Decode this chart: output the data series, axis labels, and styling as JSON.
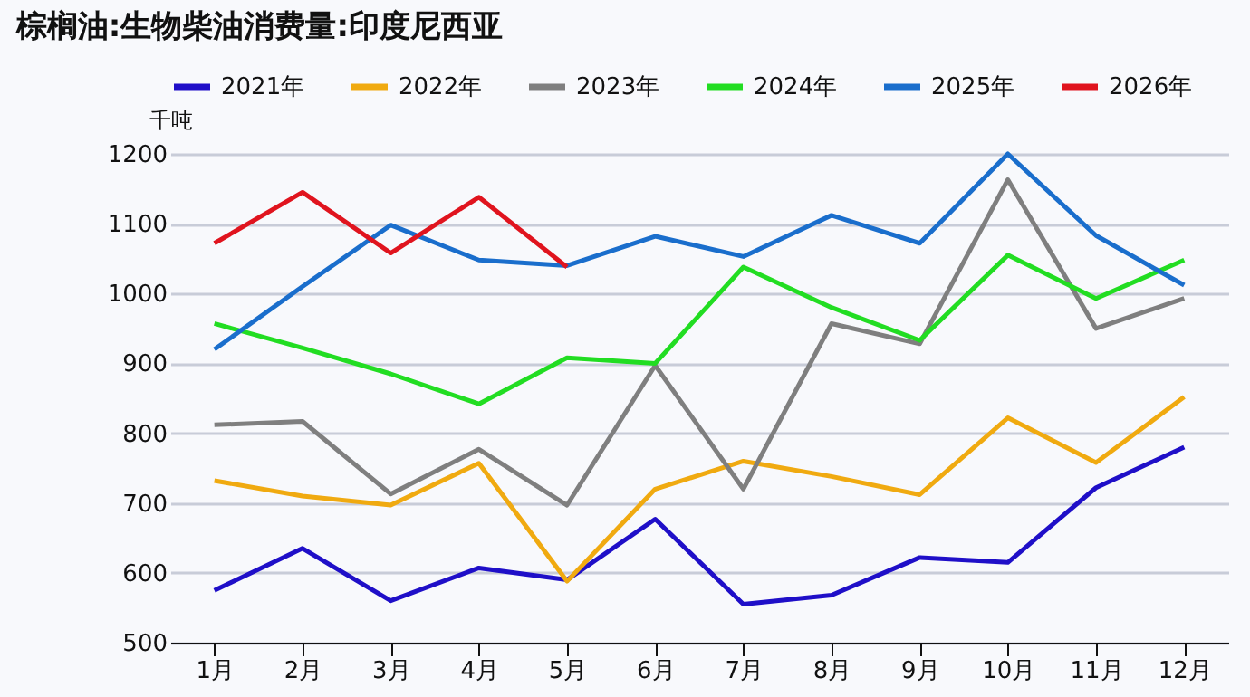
{
  "chart_data": {
    "type": "line",
    "title": "棕榈油:生物柴油消费量:印度尼西亚",
    "ylabel": "千吨",
    "categories": [
      "1月",
      "2月",
      "3月",
      "4月",
      "5月",
      "6月",
      "7月",
      "8月",
      "9月",
      "10月",
      "11月",
      "12月"
    ],
    "series": [
      {
        "name": "2021年",
        "color": "#1f0fc8",
        "values": [
          575,
          635,
          560,
          607,
          590,
          677,
          555,
          568,
          622,
          615,
          722,
          780
        ]
      },
      {
        "name": "2022年",
        "color": "#f0aa10",
        "values": [
          732,
          710,
          697,
          757,
          588,
          720,
          760,
          738,
          712,
          822,
          758,
          852
        ]
      },
      {
        "name": "2023年",
        "color": "#7f7f7f",
        "values": [
          812,
          817,
          713,
          777,
          697,
          897,
          720,
          957,
          928,
          1163,
          950,
          993
        ]
      },
      {
        "name": "2024年",
        "color": "#22dd22",
        "values": [
          957,
          922,
          885,
          842,
          908,
          900,
          1038,
          980,
          933,
          1055,
          993,
          1048
        ]
      },
      {
        "name": "2025年",
        "color": "#1a6ecc",
        "values": [
          920,
          1010,
          1098,
          1048,
          1040,
          1082,
          1053,
          1112,
          1072,
          1200,
          1083,
          1012
        ]
      },
      {
        "name": "2026年",
        "color": "#e0141e",
        "values": [
          1072,
          1145,
          1058,
          1138,
          1038,
          null,
          null,
          null,
          null,
          null,
          null,
          null
        ]
      }
    ],
    "ylim": [
      500,
      1200
    ],
    "yticks": [
      500,
      600,
      700,
      800,
      900,
      1000,
      1100,
      1200
    ],
    "grid": "y",
    "legend": "top",
    "line_style": "solid",
    "marker": "none"
  }
}
